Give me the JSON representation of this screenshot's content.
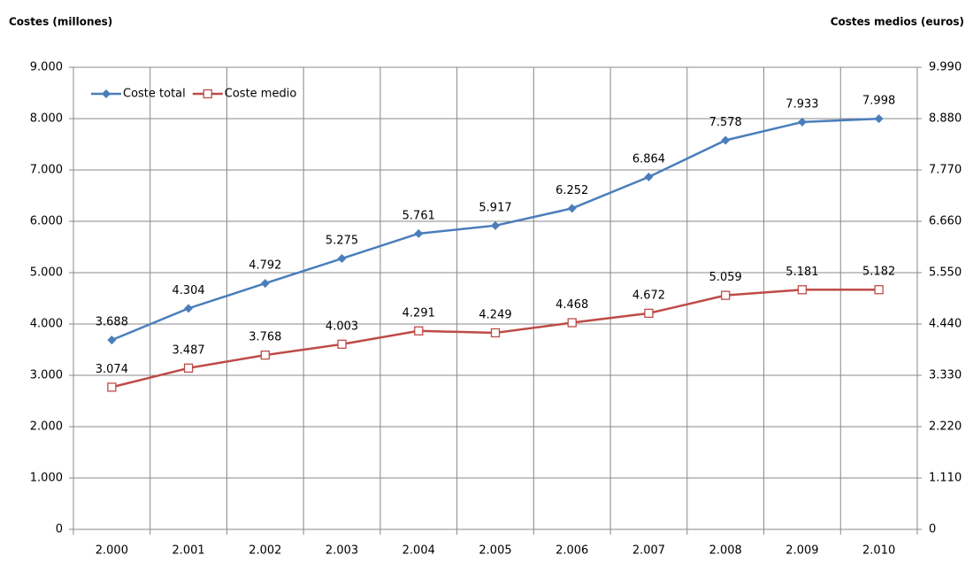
{
  "chart_data": {
    "type": "line",
    "y_label": "Costes (millones)",
    "y2_label": "Costes medios (euros)",
    "categories": [
      "2.000",
      "2.001",
      "2.002",
      "2.003",
      "2.004",
      "2.005",
      "2.006",
      "2.007",
      "2.008",
      "2.009",
      "2.010"
    ],
    "series": [
      {
        "name": "Coste total",
        "color": "#4a7ebb",
        "marker": "diamond",
        "values": [
          3688,
          4304,
          4792,
          5275,
          5761,
          5917,
          6252,
          6864,
          7578,
          7933,
          7998
        ],
        "value_labels": [
          "3.688",
          "4.304",
          "4.792",
          "5.275",
          "5.761",
          "5.917",
          "6.252",
          "6.864",
          "7.578",
          "7.933",
          "7.998"
        ]
      },
      {
        "name": "Coste medio",
        "color": "#be4b48",
        "marker": "square",
        "axis": "y2",
        "values": [
          3074,
          3487,
          3768,
          4003,
          4291,
          4249,
          4468,
          4672,
          5059,
          5181,
          5182
        ],
        "value_labels": [
          "3.074",
          "3.487",
          "3.768",
          "4.003",
          "4.291",
          "4.249",
          "4.468",
          "4.672",
          "5.059",
          "5.181",
          "5.182"
        ]
      }
    ],
    "ylim": [
      0,
      9000
    ],
    "yticks": [
      0,
      {
        "value": 1000,
        "label": "1.000"
      },
      {
        "value": 2000,
        "label": "2.000"
      },
      {
        "value": 3000,
        "label": "3.000"
      },
      {
        "value": 4000,
        "label": "4.000"
      },
      {
        "value": 5000,
        "label": "5.000"
      },
      {
        "value": 6000,
        "label": "6.000"
      },
      {
        "value": 7000,
        "label": "7.000"
      },
      {
        "value": 8000,
        "label": "8.000"
      },
      {
        "value": 9000,
        "label": "9.000"
      }
    ],
    "y2lim": [
      0,
      9990
    ],
    "y2ticks": [
      0,
      {
        "value": 1110,
        "label": "1.110"
      },
      {
        "value": 2220,
        "label": "2.220"
      },
      {
        "value": 3330,
        "label": "3.330"
      },
      {
        "value": 4440,
        "label": "4.440"
      },
      {
        "value": 5550,
        "label": "5.550"
      },
      {
        "value": 6660,
        "label": "6.660"
      },
      {
        "value": 7770,
        "label": "7.770"
      },
      {
        "value": 8880,
        "label": "8.880"
      },
      {
        "value": 9990,
        "label": "9.990"
      }
    ],
    "grid": true,
    "legend": "upper left"
  }
}
